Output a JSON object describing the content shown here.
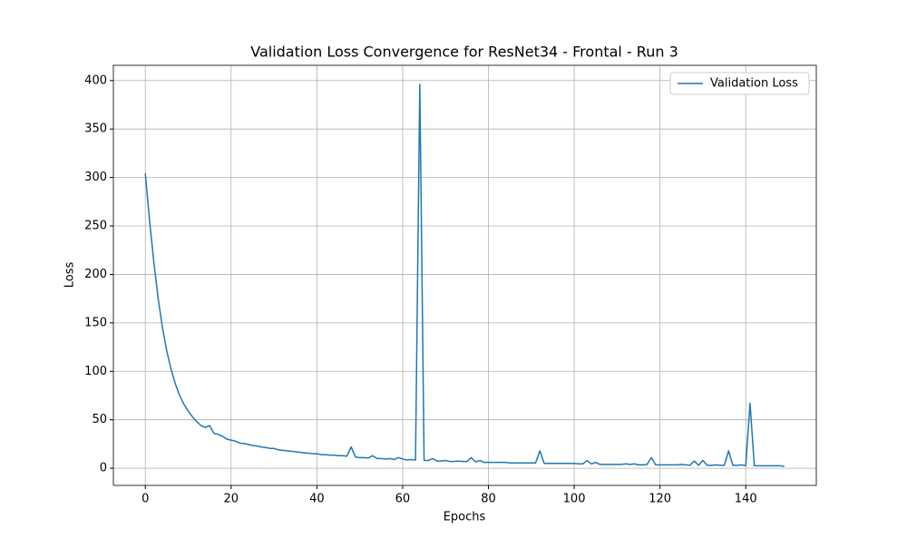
{
  "chart_data": {
    "type": "line",
    "title": "Validation Loss Convergence for ResNet34 - Frontal - Run 3",
    "x_label": "Epochs",
    "y_label": "Loss",
    "x": [
      0,
      1,
      2,
      3,
      4,
      5,
      6,
      7,
      8,
      9,
      10,
      11,
      12,
      13,
      14,
      15,
      16,
      17,
      18,
      19,
      20,
      21,
      22,
      23,
      24,
      25,
      26,
      27,
      28,
      29,
      30,
      31,
      32,
      33,
      34,
      35,
      36,
      37,
      38,
      39,
      40,
      41,
      42,
      43,
      44,
      45,
      46,
      47,
      48,
      49,
      50,
      51,
      52,
      53,
      54,
      55,
      56,
      57,
      58,
      59,
      60,
      61,
      62,
      63,
      64,
      65,
      66,
      67,
      68,
      69,
      70,
      71,
      72,
      73,
      74,
      75,
      76,
      77,
      78,
      79,
      80,
      81,
      82,
      83,
      84,
      85,
      86,
      87,
      88,
      89,
      90,
      91,
      92,
      93,
      94,
      95,
      96,
      97,
      98,
      99,
      100,
      101,
      102,
      103,
      104,
      105,
      106,
      107,
      108,
      109,
      110,
      111,
      112,
      113,
      114,
      115,
      116,
      117,
      118,
      119,
      120,
      121,
      122,
      123,
      124,
      125,
      126,
      127,
      128,
      129,
      130,
      131,
      132,
      133,
      134,
      135,
      136,
      137,
      138,
      139,
      140,
      141,
      142,
      143,
      144,
      145,
      146,
      147,
      148,
      149
    ],
    "series": [
      {
        "name": "Validation Loss",
        "color": "#1f77b4",
        "values": [
          304,
          255,
          212,
          175,
          145,
          121,
          102,
          87,
          75,
          66,
          59,
          53,
          48,
          44,
          42,
          44,
          36,
          35,
          33,
          30,
          29,
          28,
          26,
          25.5,
          24.5,
          23.5,
          23,
          22,
          21.5,
          20.5,
          20.5,
          19,
          18.5,
          18,
          17.5,
          17,
          16.5,
          16,
          15.5,
          15,
          15,
          14,
          14,
          13.5,
          13.5,
          13,
          13,
          12.5,
          22,
          11.5,
          11,
          11,
          10.5,
          13,
          10,
          10,
          9.5,
          10,
          9,
          11,
          9.5,
          8.5,
          9,
          8.5,
          396,
          8,
          8,
          10,
          7.5,
          7.5,
          8,
          7,
          7,
          7.5,
          7,
          7,
          11,
          6.5,
          8,
          6,
          6,
          6,
          6,
          6,
          6,
          5.5,
          5.5,
          5.5,
          5.5,
          5.5,
          5.5,
          5.5,
          18,
          5,
          5,
          5,
          5,
          5,
          5,
          5,
          5,
          4.5,
          4.5,
          8,
          4.5,
          6,
          4,
          4,
          4,
          4,
          4,
          4,
          4.5,
          4,
          4.5,
          3.5,
          3.5,
          4,
          11,
          3.5,
          3.5,
          3.5,
          3.5,
          3.5,
          3.5,
          4,
          3.5,
          3,
          7.5,
          3,
          8,
          3,
          3,
          3.5,
          3,
          3,
          18,
          3,
          3,
          3.5,
          2.5,
          67,
          2.5,
          2.5,
          2.5,
          2.5,
          2.5,
          2.5,
          2.5,
          2
        ]
      }
    ],
    "xlim": [
      -7.45,
      156.45
    ],
    "ylim": [
      -17.7,
      415.7
    ],
    "xticks": [
      0,
      20,
      40,
      60,
      80,
      100,
      120,
      140
    ],
    "yticks": [
      0,
      50,
      100,
      150,
      200,
      250,
      300,
      350,
      400
    ],
    "grid": true,
    "legend": "upper right"
  }
}
